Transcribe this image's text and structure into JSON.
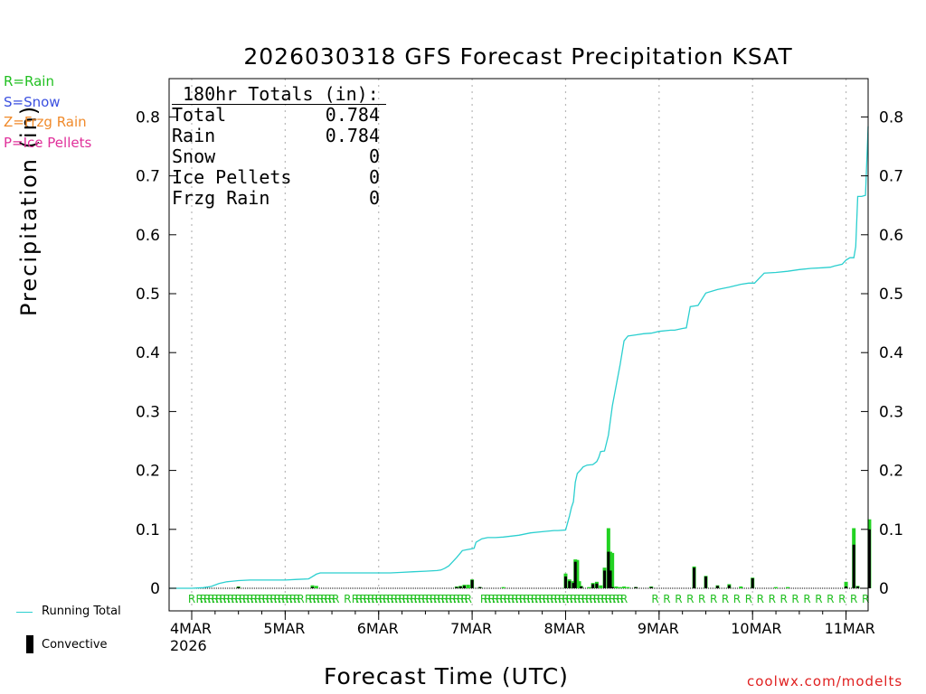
{
  "title": "2026030318 GFS Forecast Precipitation KSAT",
  "y_axis_label": "Precipitation (in)",
  "x_axis_label": "Forecast Time (UTC)",
  "credit": "coolwx.com/modelts",
  "type_legend": {
    "rain": "R=Rain",
    "snow": "S=Snow",
    "zr": "Z=Frzg Rain",
    "ip": "P=Ice Pellets"
  },
  "series_legend": {
    "running_total": "Running Total",
    "convective": "Convective"
  },
  "totals": {
    "header": "180hr Totals (in):",
    "rows": [
      {
        "label": "Total",
        "value": "0.784"
      },
      {
        "label": "Rain",
        "value": "0.784"
      },
      {
        "label": "Snow",
        "value": "0"
      },
      {
        "label": "Ice Pellets",
        "value": "0"
      },
      {
        "label": "Frzg Rain",
        "value": "0"
      }
    ]
  },
  "colors": {
    "running_total": "#2bcfcf",
    "precip_bar": "#22d222",
    "convective_bar": "#000000",
    "rain_marker": "#22c022",
    "snow": "#3b50e0",
    "zr": "#f08a2a",
    "ip": "#e0309a",
    "grid": "#b8b8b8",
    "credit": "#e02020"
  },
  "chart_data": {
    "type": "bar+line",
    "title": "2026030318 GFS Forecast Precipitation KSAT",
    "xlabel": "Forecast Time (UTC)",
    "ylabel": "Precipitation (in)",
    "x_unit": "forecast hour",
    "x_range": [
      -6,
      180
    ],
    "ylim": [
      -0.04,
      0.88
    ],
    "yticks": [
      0,
      0.1,
      0.2,
      0.3,
      0.4,
      0.5,
      0.6,
      0.7,
      0.8
    ],
    "ytick_labels": [
      "0",
      "0.1",
      "0.2",
      "0.3",
      "0.4",
      "0.5",
      "0.6",
      "0.7",
      "0.8"
    ],
    "x_ticks": [
      {
        "hour": 6,
        "label": "4MAR",
        "sublabel": "2026"
      },
      {
        "hour": 30,
        "label": "5MAR"
      },
      {
        "hour": 54,
        "label": "6MAR"
      },
      {
        "hour": 78,
        "label": "7MAR"
      },
      {
        "hour": 102,
        "label": "8MAR"
      },
      {
        "hour": 126,
        "label": "9MAR"
      },
      {
        "hour": 150,
        "label": "10MAR"
      },
      {
        "hour": 174,
        "label": "11MAR"
      }
    ],
    "running_total": {
      "name": "Running Total",
      "x": [
        -6,
        6,
        9,
        11,
        13,
        15,
        18,
        21,
        24,
        27,
        30,
        33,
        36,
        36.5,
        38,
        39,
        42,
        45,
        48,
        51,
        54,
        57,
        60,
        63,
        66,
        69,
        70,
        71,
        72,
        73,
        74,
        75,
        75.5,
        77,
        78,
        78.5,
        79,
        80.5,
        82,
        84,
        86,
        90,
        93,
        96,
        99,
        100,
        102,
        103,
        103.5,
        104,
        104.5,
        105,
        106,
        106.5,
        107.5,
        109,
        110,
        110.5,
        111,
        112,
        113,
        113.5,
        114,
        116,
        117,
        118,
        120,
        122,
        124,
        126,
        129,
        130,
        132,
        133,
        134,
        136,
        138,
        141,
        144,
        147,
        149,
        150,
        150.5,
        153,
        156,
        159,
        162,
        165,
        168,
        170,
        171,
        173,
        174,
        175,
        176,
        176.5,
        177,
        177.5,
        178,
        179,
        180
      ],
      "values": [
        0.0,
        0.0,
        0.001,
        0.003,
        0.008,
        0.011,
        0.013,
        0.014,
        0.014,
        0.014,
        0.014,
        0.015,
        0.016,
        0.018,
        0.024,
        0.026,
        0.026,
        0.026,
        0.026,
        0.026,
        0.026,
        0.026,
        0.027,
        0.028,
        0.029,
        0.03,
        0.031,
        0.034,
        0.038,
        0.045,
        0.052,
        0.06,
        0.064,
        0.066,
        0.067,
        0.068,
        0.078,
        0.084,
        0.086,
        0.086,
        0.087,
        0.09,
        0.094,
        0.096,
        0.098,
        0.098,
        0.099,
        0.123,
        0.137,
        0.147,
        0.18,
        0.195,
        0.202,
        0.206,
        0.209,
        0.21,
        0.215,
        0.222,
        0.232,
        0.233,
        0.26,
        0.285,
        0.31,
        0.38,
        0.42,
        0.428,
        0.43,
        0.432,
        0.433,
        0.436,
        0.438,
        0.438,
        0.441,
        0.442,
        0.478,
        0.48,
        0.501,
        0.507,
        0.511,
        0.516,
        0.518,
        0.518,
        0.518,
        0.535,
        0.536,
        0.538,
        0.541,
        0.543,
        0.544,
        0.545,
        0.547,
        0.55,
        0.557,
        0.561,
        0.561,
        0.58,
        0.665,
        0.665,
        0.665,
        0.667,
        0.784
      ]
    },
    "precip_bars": {
      "name": "Precipitation",
      "x": [
        18,
        37,
        38,
        74,
        75,
        76,
        77,
        78,
        80,
        86,
        102,
        103,
        104,
        104.5,
        105,
        105.5,
        106,
        108,
        109,
        110,
        111,
        112,
        113,
        113.5,
        114,
        115,
        116,
        117,
        118,
        120,
        124,
        135,
        138,
        141,
        144,
        147,
        150,
        156,
        159,
        174,
        176,
        177,
        180
      ],
      "values": [
        0.003,
        0.005,
        0.004,
        0.003,
        0.004,
        0.006,
        0.006,
        0.015,
        0.002,
        0.002,
        0.025,
        0.015,
        0.012,
        0.049,
        0.048,
        0.012,
        0.004,
        0.002,
        0.009,
        0.011,
        0.005,
        0.035,
        0.102,
        0.062,
        0.06,
        0.003,
        0.002,
        0.003,
        0.002,
        0.002,
        0.003,
        0.037,
        0.021,
        0.005,
        0.007,
        0.003,
        0.018,
        0.002,
        0.002,
        0.011,
        0.102,
        0.004,
        0.117
      ]
    },
    "convective_bars": {
      "name": "Convective",
      "x": [
        18,
        37,
        74,
        75,
        76,
        78,
        80,
        102,
        103,
        104,
        104.5,
        106,
        109,
        110,
        112,
        113,
        113.5,
        114,
        120,
        124,
        135,
        138,
        141,
        144,
        150,
        174,
        176,
        177,
        180
      ],
      "values": [
        0.002,
        0.002,
        0.002,
        0.003,
        0.004,
        0.014,
        0.002,
        0.02,
        0.012,
        0.009,
        0.045,
        0.003,
        0.007,
        0.008,
        0.03,
        0.062,
        0.03,
        0.002,
        0.002,
        0.002,
        0.035,
        0.02,
        0.004,
        0.005,
        0.017,
        0.003,
        0.074,
        0.003,
        0.1
      ]
    },
    "precip_type_markers": {
      "symbol": "R",
      "dense_ranges_hours": [
        [
          8,
          34
        ],
        [
          36,
          43
        ],
        [
          48,
          77
        ],
        [
          81,
          117
        ]
      ],
      "sparse_hours": [
        6,
        46,
        125,
        128,
        131,
        134,
        137,
        140,
        143,
        146,
        149,
        152,
        155,
        158,
        161,
        164,
        167,
        170,
        173,
        176,
        179
      ],
      "dense_step_hours": 1
    }
  }
}
